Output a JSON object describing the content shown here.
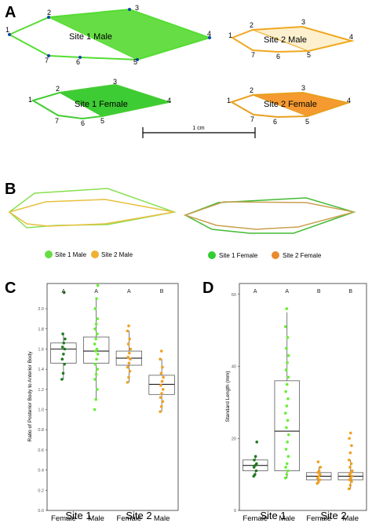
{
  "panels": {
    "A": {
      "label": "A",
      "shapes": [
        {
          "label": "Site 1 Male",
          "color": "#55dd33",
          "fill": "#66dd44"
        },
        {
          "label": "Site 2 Male",
          "color": "#f0a820",
          "fill": "#fdf0cf"
        },
        {
          "label": "Site 1 Female",
          "color": "#44cc33",
          "fill": "#3dcc33"
        },
        {
          "label": "Site 2 Female",
          "color": "#e8a020",
          "fill": "#f59a30"
        }
      ],
      "landmark_numbers": [
        "1",
        "2",
        "3",
        "4",
        "5",
        "6",
        "7"
      ],
      "scale_bar_label": "1 cm"
    },
    "B": {
      "label": "B",
      "legend_left": [
        {
          "label": "Site 1 Male",
          "color": "#66dd44"
        },
        {
          "label": "Site 2 Male",
          "color": "#f0b030"
        }
      ],
      "legend_right": [
        {
          "label": "Site 1 Female",
          "color": "#33cc33"
        },
        {
          "label": "Site 2 Female",
          "color": "#e88a30"
        }
      ]
    },
    "C": {
      "label": "C",
      "ylabel": "Ratio of Posterior Body to Anterior Body",
      "yticks": [
        "0.0",
        "0.2",
        "0.4",
        "0.6",
        "0.8",
        "1.0",
        "1.2",
        "1.4",
        "1.6",
        "1.8",
        "2.0"
      ],
      "ymin": 0,
      "ymax": 2.25,
      "groups": [
        {
          "cat": "Female",
          "letter": "A",
          "color": "#1f7a1f",
          "q1": 1.46,
          "med": 1.6,
          "q3": 1.66,
          "lo": 1.3,
          "hi": 1.75,
          "pts": [
            1.3,
            1.36,
            1.45,
            1.5,
            1.55,
            1.6,
            1.62,
            1.66,
            1.7,
            1.75,
            2.16
          ]
        },
        {
          "cat": "Male",
          "letter": "A",
          "color": "#66ee33",
          "q1": 1.46,
          "med": 1.58,
          "q3": 1.72,
          "lo": 1.1,
          "hi": 2.1,
          "pts": [
            1.0,
            1.1,
            1.2,
            1.3,
            1.35,
            1.4,
            1.45,
            1.5,
            1.55,
            1.58,
            1.6,
            1.65,
            1.7,
            1.75,
            1.8,
            1.85,
            1.9,
            2.0,
            2.1,
            2.23
          ]
        },
        {
          "cat": "Female",
          "letter": "A",
          "color": "#f0a020",
          "q1": 1.44,
          "med": 1.51,
          "q3": 1.58,
          "lo": 1.27,
          "hi": 1.78,
          "pts": [
            1.27,
            1.32,
            1.38,
            1.42,
            1.46,
            1.5,
            1.52,
            1.56,
            1.6,
            1.65,
            1.7,
            1.78,
            1.83
          ]
        },
        {
          "cat": "Male",
          "letter": "B",
          "color": "#f0a020",
          "q1": 1.15,
          "med": 1.25,
          "q3": 1.34,
          "lo": 0.98,
          "hi": 1.5,
          "pts": [
            0.98,
            1.03,
            1.08,
            1.12,
            1.16,
            1.2,
            1.24,
            1.28,
            1.32,
            1.36,
            1.42,
            1.5,
            1.58
          ]
        }
      ],
      "sites": [
        "Site 1",
        "Site 2"
      ]
    },
    "D": {
      "label": "D",
      "ylabel": "Standard Length (mm)",
      "yticks": [
        "0",
        "20",
        "40",
        "60"
      ],
      "ymin": 0,
      "ymax": 63,
      "groups": [
        {
          "cat": "Female",
          "letter": "A",
          "color": "#1f7a1f",
          "q1": 11,
          "med": 12.5,
          "q3": 14,
          "lo": 9.5,
          "hi": 15,
          "pts": [
            9.5,
            10,
            11,
            12,
            12.5,
            13,
            14,
            15,
            19
          ]
        },
        {
          "cat": "Male",
          "letter": "A",
          "color": "#66ee33",
          "q1": 11,
          "med": 22,
          "q3": 36,
          "lo": 9,
          "hi": 55,
          "pts": [
            9,
            10,
            11,
            12,
            13,
            15,
            17,
            19,
            21,
            23,
            25,
            27,
            29,
            31,
            33,
            35,
            37,
            39,
            41,
            43,
            45,
            48,
            51,
            56
          ]
        },
        {
          "cat": "Female",
          "letter": "B",
          "color": "#f0a020",
          "q1": 8.5,
          "med": 9.5,
          "q3": 10.5,
          "lo": 7.5,
          "hi": 12,
          "pts": [
            7.5,
            8,
            8.5,
            9,
            9.5,
            10,
            10.5,
            11,
            12,
            13.5
          ]
        },
        {
          "cat": "Male",
          "letter": "B",
          "color": "#f0a020",
          "q1": 8.5,
          "med": 9.5,
          "q3": 10.5,
          "lo": 6,
          "hi": 14,
          "pts": [
            6,
            7,
            8,
            8.5,
            9,
            9.5,
            10,
            10.5,
            11,
            12,
            13,
            14,
            16,
            18,
            20,
            21.5
          ]
        }
      ],
      "sites": [
        "Site 1",
        "Site 2"
      ]
    }
  }
}
